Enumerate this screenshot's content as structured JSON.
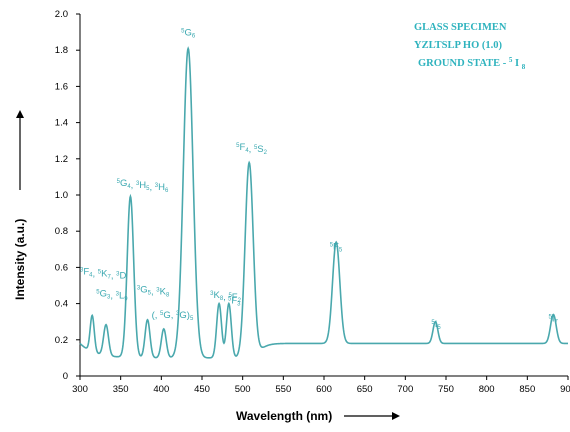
{
  "chart_data": {
    "type": "line",
    "xlabel": "Wavelength (nm)",
    "ylabel": "Intensity (a.u.)",
    "xlim": [
      300,
      900
    ],
    "ylim": [
      0,
      2.0
    ],
    "x_ticks": [
      "300",
      "350",
      "400",
      "450",
      "500",
      "550",
      "600",
      "650",
      "700",
      "750",
      "800",
      "850",
      "900"
    ],
    "y_ticks": [
      "0",
      "0.2",
      "0.4",
      "0.6",
      "0.8",
      "1.0",
      "1.2",
      "1.4",
      "1.6",
      "1.8",
      "2.0"
    ],
    "grid": false,
    "legend_text": [
      "GLASS SPECIMEN",
      "YZLTSLP HO (1.0)",
      "GROUND STATE -"
    ],
    "legend_ground_state": {
      "level": "I",
      "superscript": "5",
      "subscript": "8"
    },
    "line_color": "#4aa8ad",
    "label_color": "#3aa8b0",
    "baseline": 0.1,
    "series": [
      {
        "peaks": [
          {
            "center": 315,
            "height": 0.3,
            "width": 2.5
          },
          {
            "center": 332,
            "height": 0.27,
            "width": 3.0
          },
          {
            "center": 362,
            "height": 0.99,
            "width": 4.0
          },
          {
            "center": 383,
            "height": 0.31,
            "width": 3.0
          },
          {
            "center": 403,
            "height": 0.26,
            "width": 3.0
          },
          {
            "center": 433,
            "height": 1.81,
            "width": 6.0
          },
          {
            "center": 471,
            "height": 0.4,
            "width": 3.0
          },
          {
            "center": 483,
            "height": 0.4,
            "width": 3.0
          },
          {
            "center": 508,
            "height": 1.17,
            "width": 5.0
          },
          {
            "center": 615,
            "height": 0.66,
            "width": 4.5
          },
          {
            "center": 737,
            "height": 0.22,
            "width": 3.0
          },
          {
            "center": 882,
            "height": 0.26,
            "width": 3.5
          }
        ],
        "plateau": 0.18
      }
    ],
    "peak_labels": [
      {
        "text": "F",
        "sup": "3",
        "sub": "4",
        "text2": "K",
        "sup2": "5",
        "sub2": "7",
        "text3": "D",
        "sup3": "3",
        "sub3": "",
        "x": 300,
        "y": 0.56,
        "anchor": "start"
      },
      {
        "text": "G",
        "sup": "5",
        "sub": "3",
        "text2": "L",
        "sup2": "3",
        "sub2": "9",
        "x": 320,
        "y": 0.44,
        "anchor": "start"
      },
      {
        "text": "G",
        "sup": "5",
        "sub": "4",
        "text2": "H",
        "sup2": "3",
        "sub2": "5",
        "text3": "H",
        "sup3": "3",
        "sub3": "6",
        "x": 345,
        "y": 1.05,
        "anchor": "start"
      },
      {
        "text": "G",
        "sup": "3",
        "sub": "5",
        "text2": "K",
        "sup2": "3",
        "sub2": "8",
        "x": 370,
        "y": 0.46,
        "anchor": "start"
      },
      {
        "text": "(",
        "sup": "",
        "sub": "",
        "text2": "G",
        "sup2": "5",
        "sub2": "",
        "text3": "G)",
        "sup3": "3",
        "sub3": "5",
        "x": 388,
        "y": 0.32,
        "anchor": "start"
      },
      {
        "text": "G",
        "sup": "5",
        "sub": "6",
        "x": 433,
        "y": 1.88,
        "anchor": "middle"
      },
      {
        "text": "K",
        "sup": "3",
        "sub": "8",
        "text2": "F",
        "sup2": "5",
        "sub2": "2",
        "x": 460,
        "y": 0.43,
        "anchor": "start"
      },
      {
        "text": "F",
        "sup": "5",
        "sub": "3",
        "x": 482,
        "y": 0.4,
        "anchor": "start"
      },
      {
        "text": "F",
        "sup": "5",
        "sub": "4",
        "text2": "S",
        "sup2": "5",
        "sub2": "2",
        "x": 492,
        "y": 1.25,
        "anchor": "start"
      },
      {
        "text": "F",
        "sup": "5",
        "sub": "5",
        "x": 607,
        "y": 0.7,
        "anchor": "start"
      },
      {
        "text": "I",
        "sup": "5",
        "sub": "5",
        "x": 732,
        "y": 0.27,
        "anchor": "start"
      },
      {
        "text": "I",
        "sup": "5",
        "sub": "7",
        "x": 876,
        "y": 0.3,
        "anchor": "start"
      }
    ]
  }
}
